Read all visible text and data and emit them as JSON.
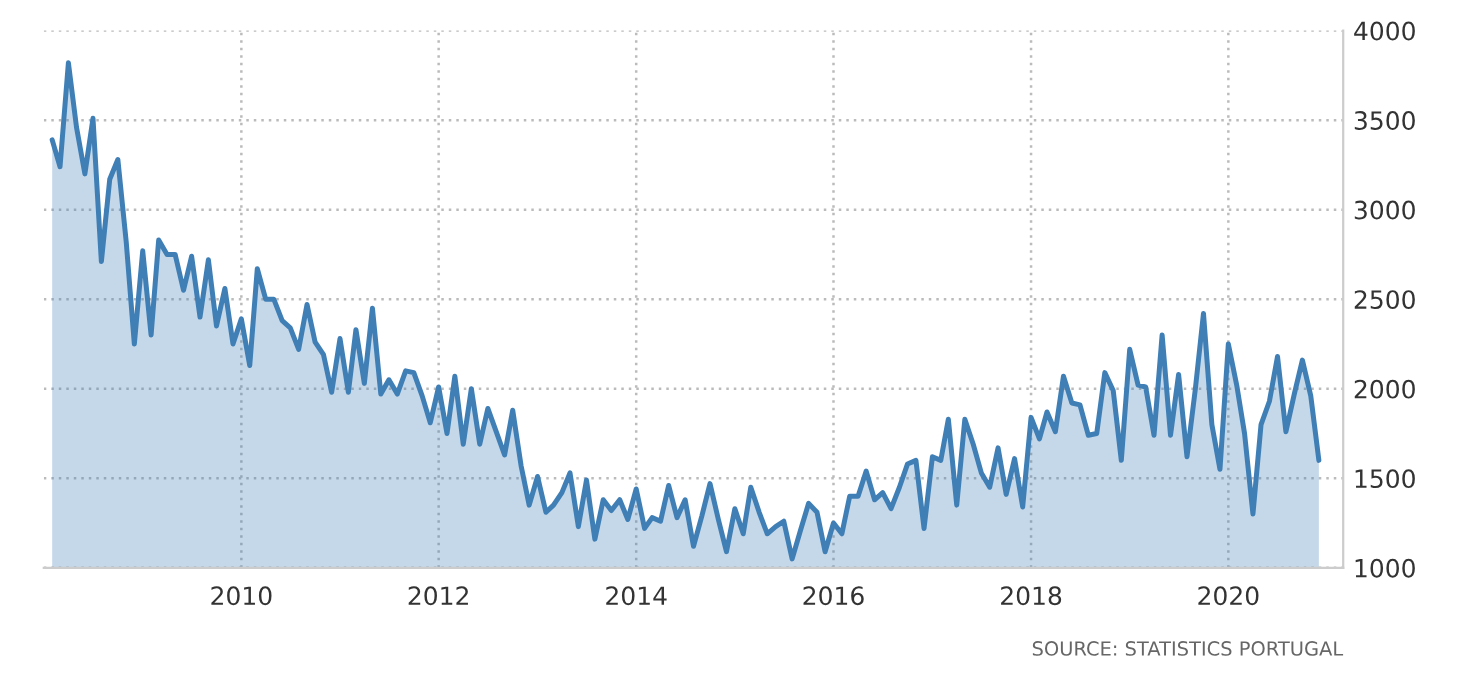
{
  "chart_data": {
    "type": "area",
    "x": [
      "2008-02",
      "2008-03",
      "2008-04",
      "2008-05",
      "2008-06",
      "2008-07",
      "2008-08",
      "2008-09",
      "2008-10",
      "2008-11",
      "2008-12",
      "2009-01",
      "2009-02",
      "2009-03",
      "2009-04",
      "2009-05",
      "2009-06",
      "2009-07",
      "2009-08",
      "2009-09",
      "2009-10",
      "2009-11",
      "2009-12",
      "2010-01",
      "2010-02",
      "2010-03",
      "2010-04",
      "2010-05",
      "2010-06",
      "2010-07",
      "2010-08",
      "2010-09",
      "2010-10",
      "2010-11",
      "2010-12",
      "2011-01",
      "2011-02",
      "2011-03",
      "2011-04",
      "2011-05",
      "2011-06",
      "2011-07",
      "2011-08",
      "2011-09",
      "2011-10",
      "2011-11",
      "2011-12",
      "2012-01",
      "2012-02",
      "2012-03",
      "2012-04",
      "2012-05",
      "2012-06",
      "2012-07",
      "2012-08",
      "2012-09",
      "2012-10",
      "2012-11",
      "2012-12",
      "2013-01",
      "2013-02",
      "2013-03",
      "2013-04",
      "2013-05",
      "2013-06",
      "2013-07",
      "2013-08",
      "2013-09",
      "2013-10",
      "2013-11",
      "2013-12",
      "2014-01",
      "2014-02",
      "2014-03",
      "2014-04",
      "2014-05",
      "2014-06",
      "2014-07",
      "2014-08",
      "2014-09",
      "2014-10",
      "2014-11",
      "2014-12",
      "2015-01",
      "2015-02",
      "2015-03",
      "2015-04",
      "2015-05",
      "2015-06",
      "2015-07",
      "2015-08",
      "2015-09",
      "2015-10",
      "2015-11",
      "2015-12",
      "2016-01",
      "2016-02",
      "2016-03",
      "2016-04",
      "2016-05",
      "2016-06",
      "2016-07",
      "2016-08",
      "2016-09",
      "2016-10",
      "2016-11",
      "2016-12",
      "2017-01",
      "2017-02",
      "2017-03",
      "2017-04",
      "2017-05",
      "2017-06",
      "2017-07",
      "2017-08",
      "2017-09",
      "2017-10",
      "2017-11",
      "2017-12",
      "2018-01",
      "2018-02",
      "2018-03",
      "2018-04",
      "2018-05",
      "2018-06",
      "2018-07",
      "2018-08",
      "2018-09",
      "2018-10",
      "2018-11",
      "2018-12",
      "2019-01",
      "2019-02",
      "2019-03",
      "2019-04",
      "2019-05",
      "2019-06",
      "2019-07",
      "2019-08",
      "2019-09",
      "2019-10",
      "2019-11",
      "2019-12",
      "2020-01",
      "2020-02",
      "2020-03",
      "2020-04",
      "2020-05",
      "2020-06",
      "2020-07",
      "2020-08",
      "2020-09",
      "2020-10",
      "2020-11",
      "2020-12"
    ],
    "series": [
      {
        "color": "#3f7fb6",
        "values": [
          3390,
          3240,
          3820,
          3460,
          3200,
          3510,
          2710,
          3170,
          3280,
          2820,
          2250,
          2770,
          2300,
          2830,
          2750,
          2750,
          2550,
          2740,
          2400,
          2720,
          2350,
          2560,
          2250,
          2390,
          2130,
          2670,
          2500,
          2500,
          2380,
          2340,
          2220,
          2470,
          2260,
          2190,
          1980,
          2280,
          1980,
          2330,
          2030,
          2450,
          1970,
          2050,
          1970,
          2100,
          2090,
          1960,
          1810,
          2010,
          1750,
          2070,
          1690,
          2000,
          1690,
          1890,
          1760,
          1630,
          1880,
          1570,
          1350,
          1510,
          1310,
          1350,
          1420,
          1530,
          1230,
          1490,
          1160,
          1380,
          1320,
          1380,
          1270,
          1440,
          1220,
          1280,
          1260,
          1460,
          1280,
          1380,
          1120,
          1290,
          1470,
          1270,
          1090,
          1330,
          1190,
          1450,
          1310,
          1190,
          1230,
          1260,
          1050,
          1210,
          1360,
          1310,
          1090,
          1250,
          1190,
          1400,
          1400,
          1540,
          1380,
          1420,
          1330,
          1450,
          1580,
          1600,
          1220,
          1620,
          1600,
          1830,
          1350,
          1830,
          1690,
          1530,
          1450,
          1670,
          1410,
          1610,
          1340,
          1840,
          1720,
          1870,
          1760,
          2070,
          1920,
          1910,
          1740,
          1750,
          2090,
          1990,
          1600,
          2220,
          2020,
          2010,
          1740,
          2300,
          1740,
          2080,
          1620,
          2000,
          2420,
          1800,
          1550,
          2250,
          2020,
          1750,
          1300,
          1800,
          1930,
          2180,
          1760,
          1970,
          2160,
          1960,
          1600
        ]
      }
    ],
    "xlim": [
      "2008-01",
      "2021-03"
    ],
    "xticks": [
      "2010",
      "2012",
      "2014",
      "2016",
      "2018",
      "2020"
    ],
    "ylim": [
      1000,
      4000
    ],
    "yticks": [
      1000,
      1500,
      2000,
      2500,
      3000,
      3500,
      4000
    ],
    "grid": true,
    "annotations": [
      "SOURCE: STATISTICS PORTUGAL"
    ]
  }
}
